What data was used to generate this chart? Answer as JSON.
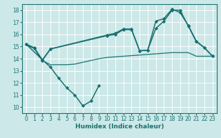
{
  "xlabel": "Humidex (Indice chaleur)",
  "bg_color": "#cce8e8",
  "grid_color": "#ffffff",
  "line_color": "#1a7070",
  "xlim": [
    -0.5,
    23.5
  ],
  "ylim": [
    9.5,
    18.5
  ],
  "xticks": [
    0,
    1,
    2,
    3,
    4,
    5,
    6,
    7,
    8,
    9,
    10,
    11,
    12,
    13,
    14,
    15,
    16,
    17,
    18,
    19,
    20,
    21,
    22,
    23
  ],
  "yticks": [
    10,
    11,
    12,
    13,
    14,
    15,
    16,
    17,
    18
  ],
  "series": [
    {
      "x": [
        0,
        1,
        2,
        3,
        4,
        5,
        6,
        7,
        8,
        9
      ],
      "y": [
        15.2,
        14.9,
        13.9,
        13.3,
        12.4,
        11.6,
        11.0,
        10.1,
        10.5,
        11.8
      ],
      "marker": "D",
      "markersize": 2.2,
      "linewidth": 1.1
    },
    {
      "x": [
        0,
        1,
        2,
        3,
        4,
        5,
        6,
        7,
        8,
        9,
        10,
        11,
        12,
        13,
        14,
        15,
        16,
        17,
        18,
        19,
        20,
        21,
        22,
        23
      ],
      "y": [
        15.1,
        14.85,
        13.85,
        13.5,
        13.5,
        13.5,
        13.55,
        13.7,
        13.85,
        14.0,
        14.1,
        14.15,
        14.2,
        14.25,
        14.3,
        14.35,
        14.4,
        14.45,
        14.5,
        14.5,
        14.5,
        14.2,
        14.2,
        14.2
      ],
      "marker": null,
      "markersize": 0,
      "linewidth": 0.9
    },
    {
      "x": [
        0,
        2,
        3,
        10,
        11,
        12,
        13,
        14,
        15,
        16,
        17,
        18,
        19,
        20,
        21,
        22,
        23
      ],
      "y": [
        15.2,
        13.9,
        14.8,
        15.9,
        16.0,
        16.4,
        16.4,
        14.65,
        14.7,
        16.5,
        17.1,
        18.0,
        18.0,
        16.7,
        15.4,
        14.9,
        14.2
      ],
      "marker": "D",
      "markersize": 2.2,
      "linewidth": 1.1
    },
    {
      "x": [
        0,
        1,
        2,
        3,
        10,
        11,
        12,
        13,
        14,
        15,
        16,
        17,
        18,
        19,
        20,
        21,
        22,
        23
      ],
      "y": [
        15.2,
        14.85,
        13.85,
        14.8,
        15.95,
        16.1,
        16.45,
        16.45,
        14.65,
        14.7,
        17.1,
        17.3,
        18.1,
        17.8,
        16.75,
        15.45,
        14.9,
        14.2
      ],
      "marker": "D",
      "markersize": 2.2,
      "linewidth": 1.1
    }
  ]
}
